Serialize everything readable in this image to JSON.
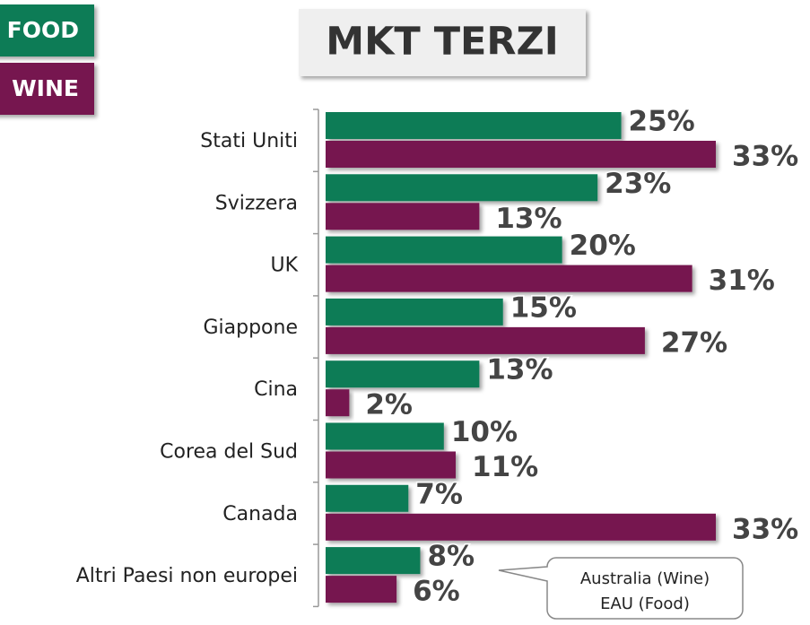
{
  "chart_data": {
    "type": "bar",
    "orientation": "horizontal",
    "title": "MKT TERZI",
    "categories": [
      "Stati Uniti",
      "Svizzera",
      "UK",
      "Giappone",
      "Cina",
      "Corea del Sud",
      "Canada",
      "Altri Paesi non europei"
    ],
    "series": [
      {
        "name": "FOOD",
        "color": "#0f7b56",
        "values": [
          25,
          23,
          20,
          15,
          13,
          10,
          7,
          8
        ],
        "value_labels": [
          "25%",
          "23%",
          "20%",
          "15%",
          "13%",
          "10%",
          "7%",
          "8%"
        ]
      },
      {
        "name": "WINE",
        "color": "#76174f",
        "values": [
          33,
          13,
          31,
          27,
          2,
          11,
          33,
          6
        ],
        "value_labels": [
          "33%",
          "13%",
          "31%",
          "27%",
          "2%",
          "11%",
          "33%",
          "6%"
        ]
      }
    ],
    "annotation": [
      "Australia (Wine)",
      "EAU (Food)"
    ]
  }
}
